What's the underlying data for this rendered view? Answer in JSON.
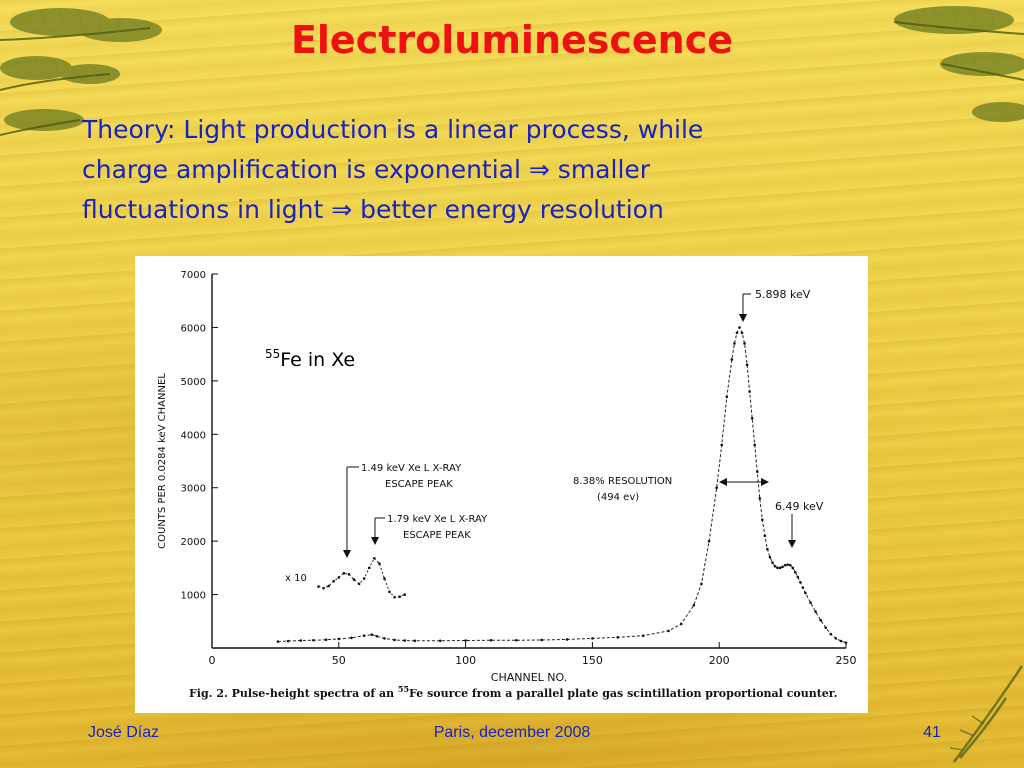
{
  "slide": {
    "title": "Electroluminescence",
    "text": {
      "line1": "Theory: Light production is a linear process, while",
      "line2_a": "charge amplification is exponential",
      "line2_b": "smaller",
      "line3_a": "fluctuations in light",
      "line3_b": "better energy resolution",
      "arrow_symbol": "⇒"
    },
    "footer": {
      "author": "José Díaz",
      "place_date": "Paris, december 2008",
      "page_number": "41"
    },
    "colors": {
      "title": "#ee1111",
      "body_text": "#1a22c4",
      "background": "#efd24a"
    }
  },
  "figure": {
    "overlay_label_sup": "55",
    "overlay_label_rest": "Fe in Xe",
    "caption_a": "Fig. 2.  Pulse-height spectra of an ",
    "caption_sup": "55",
    "caption_b": "Fe source from a parallel plate gas scintillation proportional counter.",
    "annotations": {
      "peak_main": "5.898 keV",
      "escape1_line1": "1.49 keV Xe L X-RAY",
      "escape1_line2": "ESCAPE PEAK",
      "escape2_line1": "1.79 keV Xe L X-RAY",
      "escape2_line2": "ESCAPE PEAK",
      "resolution_line1": "8.38% RESOLUTION",
      "resolution_line2": "(494 ev)",
      "peak_secondary": "6.49 keV",
      "scale_factor": "x 10"
    }
  },
  "chart_data": {
    "type": "scatter",
    "title": "",
    "xlabel": "CHANNEL NO.",
    "ylabel": "COUNTS PER 0.0284 keV CHANNEL",
    "xlim": [
      0,
      250
    ],
    "ylim": [
      0,
      7000
    ],
    "x_ticks": [
      0,
      50,
      100,
      150,
      200,
      250
    ],
    "y_ticks": [
      1000,
      2000,
      3000,
      4000,
      5000,
      6000,
      7000
    ],
    "grid": false,
    "series": [
      {
        "x": [
          26,
          30,
          35,
          40,
          45,
          50,
          55,
          60,
          63,
          65,
          68,
          72,
          76,
          80,
          90,
          100,
          110,
          120,
          130,
          140,
          150,
          160,
          170,
          180,
          185,
          190,
          193,
          196,
          199,
          201,
          203,
          205,
          206,
          207,
          208,
          209,
          210,
          211,
          212,
          213,
          214,
          215,
          216,
          217,
          218,
          219,
          220,
          221,
          222,
          223,
          224,
          225,
          226,
          227,
          228,
          229,
          230,
          231,
          232,
          233,
          234,
          236,
          238,
          240,
          242,
          244,
          246,
          248,
          250
        ],
        "y": [
          120,
          130,
          140,
          145,
          155,
          170,
          190,
          230,
          250,
          220,
          180,
          150,
          140,
          135,
          135,
          140,
          145,
          145,
          150,
          160,
          180,
          200,
          230,
          320,
          450,
          800,
          1200,
          2000,
          3000,
          3800,
          4700,
          5400,
          5700,
          5900,
          6000,
          5900,
          5700,
          5300,
          4800,
          4300,
          3800,
          3300,
          2800,
          2400,
          2100,
          1850,
          1700,
          1600,
          1530,
          1500,
          1500,
          1520,
          1550,
          1560,
          1550,
          1500,
          1420,
          1330,
          1230,
          1130,
          1030,
          850,
          680,
          520,
          380,
          260,
          180,
          130,
          100
        ]
      },
      {
        "name": "x 10",
        "x": [
          42,
          44,
          46,
          48,
          50,
          52,
          54,
          56,
          58,
          60,
          62,
          64,
          66,
          68,
          70,
          72,
          74,
          76
        ],
        "y": [
          1150,
          1120,
          1160,
          1250,
          1320,
          1400,
          1380,
          1280,
          1200,
          1300,
          1500,
          1680,
          1580,
          1300,
          1050,
          950,
          960,
          1000
        ]
      }
    ]
  }
}
